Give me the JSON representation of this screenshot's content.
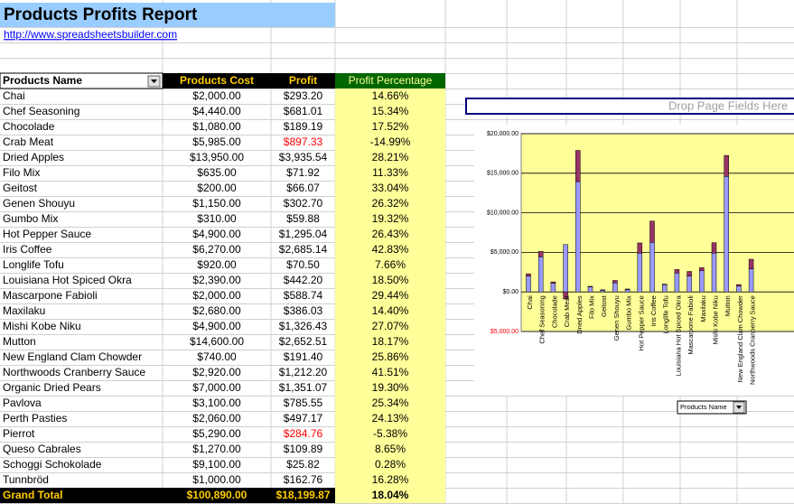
{
  "header": {
    "title": "Products Profits Report",
    "link": "http://www.spreadsheetsbuilder.com"
  },
  "table": {
    "columns": [
      "Products Name",
      "Products Cost",
      "Profit",
      "Profit Percentage"
    ],
    "rows": [
      [
        "Chai",
        "$2,000.00",
        "$293.20",
        "14.66%"
      ],
      [
        "Chef Seasoning",
        "$4,440.00",
        "$681.01",
        "15.34%"
      ],
      [
        "Chocolade",
        "$1,080.00",
        "$189.19",
        "17.52%"
      ],
      [
        "Crab Meat",
        "$5,985.00",
        "$897.33",
        "-14.99%"
      ],
      [
        "Dried Apples",
        "$13,950.00",
        "$3,935.54",
        "28.21%"
      ],
      [
        "Filo Mix",
        "$635.00",
        "$71.92",
        "11.33%"
      ],
      [
        "Geitost",
        "$200.00",
        "$66.07",
        "33.04%"
      ],
      [
        "Genen Shouyu",
        "$1,150.00",
        "$302.70",
        "26.32%"
      ],
      [
        "Gumbo Mix",
        "$310.00",
        "$59.88",
        "19.32%"
      ],
      [
        "Hot Pepper Sauce",
        "$4,900.00",
        "$1,295.04",
        "26.43%"
      ],
      [
        "Iris Coffee",
        "$6,270.00",
        "$2,685.14",
        "42.83%"
      ],
      [
        "Longlife Tofu",
        "$920.00",
        "$70.50",
        "7.66%"
      ],
      [
        "Louisiana Hot Spiced Okra",
        "$2,390.00",
        "$442.20",
        "18.50%"
      ],
      [
        "Mascarpone Fabioli",
        "$2,000.00",
        "$588.74",
        "29.44%"
      ],
      [
        "Maxilaku",
        "$2,680.00",
        "$386.03",
        "14.40%"
      ],
      [
        "Mishi Kobe Niku",
        "$4,900.00",
        "$1,326.43",
        "27.07%"
      ],
      [
        "Mutton",
        "$14,600.00",
        "$2,652.51",
        "18.17%"
      ],
      [
        "New England Clam Chowder",
        "$740.00",
        "$191.40",
        "25.86%"
      ],
      [
        "Northwoods Cranberry Sauce",
        "$2,920.00",
        "$1,212.20",
        "41.51%"
      ],
      [
        "Organic Dried Pears",
        "$7,000.00",
        "$1,351.07",
        "19.30%"
      ],
      [
        "Pavlova",
        "$3,100.00",
        "$785.55",
        "25.34%"
      ],
      [
        "Perth Pasties",
        "$2,060.00",
        "$497.17",
        "24.13%"
      ],
      [
        "Pierrot",
        "$5,290.00",
        "$284.76",
        "-5.38%"
      ],
      [
        "Queso Cabrales",
        "$1,270.00",
        "$109.89",
        "8.65%"
      ],
      [
        "Schoggi Schokolade",
        "$9,100.00",
        "$25.82",
        "0.28%"
      ],
      [
        "Tunnbröd",
        "$1,000.00",
        "$162.76",
        "16.28%"
      ]
    ],
    "total": [
      "Grand Total",
      "$100,890.00",
      "$18,199.87",
      "18.04%"
    ]
  },
  "pivot": {
    "drop_zone": "Drop Page Fields Here",
    "field_button": "Products Name"
  },
  "chart_data": {
    "type": "bar",
    "stacked": true,
    "categories": [
      "Chai",
      "Chef Seasoning",
      "Chocolade",
      "Crab Meat",
      "Dried Apples",
      "Filo Mix",
      "Geitost",
      "Genen Shouyu",
      "Gumbo Mix",
      "Hot Pepper Sauce",
      "Iris Coffee",
      "Longlife Tofu",
      "Louisiana Hot Spiced Okra",
      "Mascarpone Fabioli",
      "Maxilaku",
      "Mishi Kobe Niku",
      "Mutton",
      "New England Clam Chowder",
      "Northwoods Cranberry Sauce"
    ],
    "series": [
      {
        "color": "#9999ff",
        "values": [
          2000,
          4440,
          1080,
          5985,
          13950,
          635,
          200,
          1150,
          310,
          4900,
          6270,
          920,
          2390,
          2000,
          2680,
          4900,
          14600,
          740,
          2920
        ]
      },
      {
        "color": "#993366",
        "values": [
          293.2,
          681.01,
          189.19,
          -897.33,
          3935.54,
          71.92,
          66.07,
          302.7,
          59.88,
          1295.04,
          2685.14,
          70.5,
          442.2,
          588.74,
          386.03,
          1326.43,
          2652.51,
          191.4,
          1212.2
        ]
      }
    ],
    "ylim": [
      -5000,
      20000
    ],
    "yticks": [
      {
        "value": -5000,
        "label": "$5,000.00"
      },
      {
        "value": 0,
        "label": "$0.00"
      },
      {
        "value": 5000,
        "label": "$5,000.00"
      },
      {
        "value": 10000,
        "label": "$10,000.00"
      },
      {
        "value": 15000,
        "label": "$15,000.00"
      },
      {
        "value": 20000,
        "label": "$20,000.00"
      }
    ],
    "grid": true,
    "plot_background": "#ffff99"
  }
}
